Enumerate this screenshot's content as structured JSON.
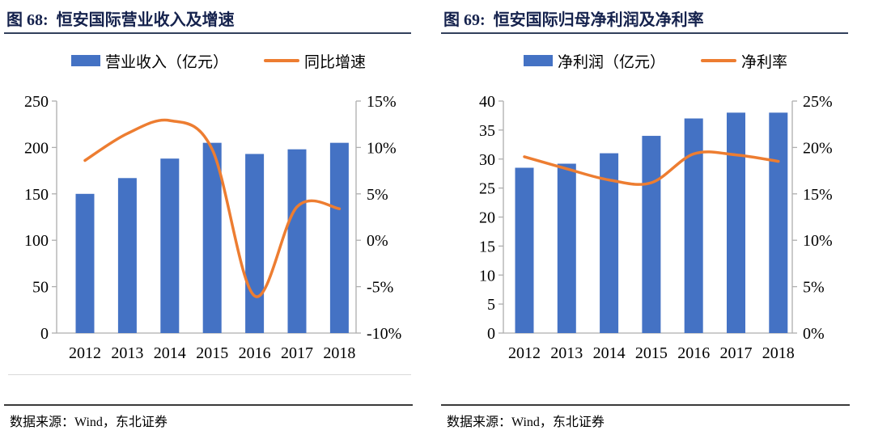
{
  "panels": [
    {
      "title": "图 68:  恒安国际营业收入及增速",
      "legend_bar": "营业收入（亿元）",
      "legend_line": "同比增速",
      "source": "数据来源：Wind，东北证券"
    },
    {
      "title": "图 69:  恒安国际归母净利润及净利率",
      "legend_bar": "净利润（亿元）",
      "legend_line": "净利率",
      "source": "数据来源：Wind，东北证券"
    }
  ],
  "colors": {
    "bar": "#4472C4",
    "line": "#ED7D31",
    "axis": "#aeaeae",
    "title": "#15224d"
  },
  "chart_data": [
    {
      "type": "bar",
      "title": "图 68: 恒安国际营业收入及增速",
      "categories": [
        "2012",
        "2013",
        "2014",
        "2015",
        "2016",
        "2017",
        "2018"
      ],
      "series": [
        {
          "name": "营业收入（亿元）",
          "kind": "bar",
          "axis": "left",
          "values": [
            150,
            167,
            188,
            205,
            193,
            198,
            205
          ]
        },
        {
          "name": "同比增速",
          "kind": "line",
          "axis": "right",
          "values": [
            8.6,
            11.5,
            12.9,
            9.8,
            -6.0,
            3.6,
            3.4
          ]
        }
      ],
      "left_axis": {
        "min": 0,
        "max": 250,
        "step": 50,
        "suffix": ""
      },
      "right_axis": {
        "min": -10,
        "max": 15,
        "step": 5,
        "suffix": "%"
      },
      "grid": false,
      "legend_position": "top"
    },
    {
      "type": "bar",
      "title": "图 69: 恒安国际归母净利润及净利率",
      "categories": [
        "2012",
        "2013",
        "2014",
        "2015",
        "2016",
        "2017",
        "2018"
      ],
      "series": [
        {
          "name": "净利润（亿元）",
          "kind": "bar",
          "axis": "left",
          "values": [
            28.5,
            29.2,
            31,
            34,
            37,
            38,
            38
          ]
        },
        {
          "name": "净利率",
          "kind": "line",
          "axis": "right",
          "values": [
            19.0,
            17.7,
            16.5,
            16.2,
            19.3,
            19.2,
            18.5
          ]
        }
      ],
      "left_axis": {
        "min": 0,
        "max": 40,
        "step": 5,
        "suffix": ""
      },
      "right_axis": {
        "min": 0,
        "max": 25,
        "step": 5,
        "suffix": "%"
      },
      "grid": false,
      "legend_position": "top"
    }
  ]
}
